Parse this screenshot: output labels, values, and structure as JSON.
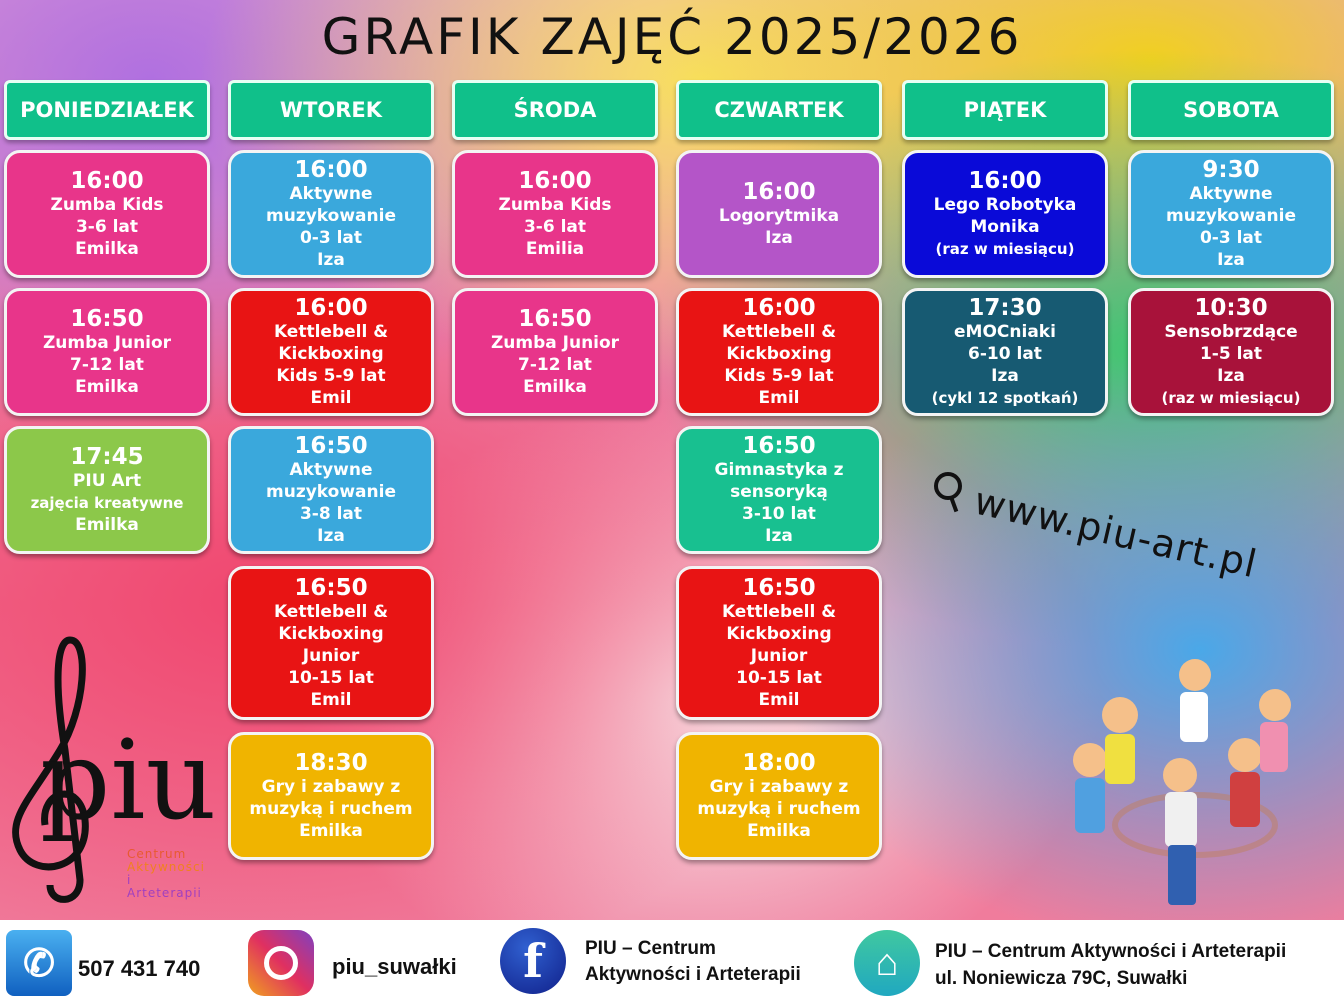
{
  "title": "GRAFIK ZAJĘĆ 2025/2026",
  "days": [
    {
      "name": "PONIEDZIAŁEK",
      "classes": [
        {
          "lines": [
            "16:00",
            "Zumba Kids",
            "3-6 lat",
            "Emilka"
          ],
          "color": "#e8358a"
        },
        {
          "lines": [
            "16:50",
            "Zumba Junior",
            "7-12 lat",
            "Emilka"
          ],
          "color": "#e8358a"
        },
        {
          "lines": [
            "17:45",
            "PIU Art",
            "zajęcia kreatywne",
            "Emilka"
          ],
          "color": "#8cc84a"
        }
      ]
    },
    {
      "name": "WTOREK",
      "classes": [
        {
          "lines": [
            "16:00",
            "Aktywne muzykowanie",
            "0-3 lat",
            "Iza"
          ],
          "color": "#3aa8dc"
        },
        {
          "lines": [
            "16:00",
            "Kettlebell & Kickboxing",
            "Kids 5-9 lat",
            "Emil"
          ],
          "color": "#e81414"
        },
        {
          "lines": [
            "16:50",
            "Aktywne muzykowanie",
            "3-8 lat",
            "Iza"
          ],
          "color": "#3aa8dc"
        },
        {
          "lines": [
            "16:50",
            "Kettlebell & Kickboxing",
            "Junior",
            "10-15 lat",
            "Emil"
          ],
          "color": "#e81414"
        },
        {
          "lines": [
            "18:30",
            "Gry i zabawy z muzyką i ruchem",
            "Emilka"
          ],
          "color": "#f0b400"
        }
      ]
    },
    {
      "name": "ŚRODA",
      "classes": [
        {
          "lines": [
            "16:00",
            "Zumba Kids",
            "3-6 lat",
            "Emilia"
          ],
          "color": "#e8358a"
        },
        {
          "lines": [
            "16:50",
            "Zumba Junior",
            "7-12 lat",
            "Emilka"
          ],
          "color": "#e8358a"
        }
      ]
    },
    {
      "name": "CZWARTEK",
      "classes": [
        {
          "lines": [
            "16:00",
            "Logorytmika",
            "Iza"
          ],
          "color": "#b455c8"
        },
        {
          "lines": [
            "16:00",
            "Kettlebell & Kickboxing",
            "Kids 5-9 lat",
            "Emil"
          ],
          "color": "#e81414"
        },
        {
          "lines": [
            "16:50",
            "Gimnastyka z sensoryką",
            "3-10 lat",
            "Iza"
          ],
          "color": "#18c090"
        },
        {
          "lines": [
            "16:50",
            "Kettlebell & Kickboxing",
            "Junior",
            "10-15 lat",
            "Emil"
          ],
          "color": "#e81414"
        },
        {
          "lines": [
            "18:00",
            "Gry i zabawy z muzyką i ruchem",
            "Emilka"
          ],
          "color": "#f0b400"
        }
      ]
    },
    {
      "name": "PIĄTEK",
      "classes": [
        {
          "lines": [
            "16:00",
            "Lego Robotyka",
            "Monika",
            "(raz w miesiącu)"
          ],
          "color": "#0a0ad8"
        },
        {
          "lines": [
            "17:30",
            "eMOCniaki",
            "6-10 lat",
            "Iza",
            "(cykl 12 spotkań)"
          ],
          "color": "#175a72"
        }
      ]
    },
    {
      "name": "SOBOTA",
      "classes": [
        {
          "lines": [
            "9:30",
            "Aktywne muzykowanie",
            "0-3 lat",
            "Iza"
          ],
          "color": "#3aa8dc"
        },
        {
          "lines": [
            "10:30",
            "Sensobrzdące",
            "1-5 lat",
            "Iza",
            "(raz w miesiącu)"
          ],
          "color": "#a8123a"
        }
      ]
    }
  ],
  "website": "www.piu-art.pl",
  "logo": {
    "name": "piu",
    "sub": [
      "Centrum",
      "Aktywności",
      "i Arteterapii"
    ]
  },
  "footer": {
    "phone": "507 431 740",
    "instagram": "piu_suwałki",
    "facebook": [
      "PIU – Centrum",
      "Aktywności i Arteterapii"
    ],
    "address": [
      "PIU – Centrum Aktywności i Arteterapii",
      "ul. Noniewicza 79C, Suwałki"
    ]
  }
}
